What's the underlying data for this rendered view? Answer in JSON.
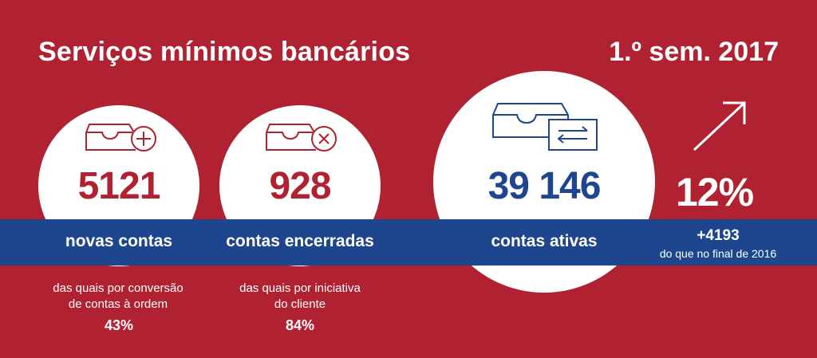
{
  "header": {
    "title": "Serviços mínimos bancários",
    "period": "1.º sem. 2017"
  },
  "stats": {
    "new_accounts": {
      "value": "5121",
      "label": "novas contas",
      "note_line1": "das quais por conversão",
      "note_line2": "de contas à ordem",
      "note_pct": "43%"
    },
    "closed_accounts": {
      "value": "928",
      "label": "contas encerradas",
      "note_line1": "das quais por iniciativa",
      "note_line2": "do cliente",
      "note_pct": "84%"
    },
    "active_accounts": {
      "value": "39 146",
      "label": "contas ativas"
    },
    "growth": {
      "pct": "12%",
      "delta": "+4193",
      "delta_note": "do que no final de 2016"
    }
  },
  "colors": {
    "background": "#b02231",
    "band": "#1e468e",
    "red_text": "#b02231",
    "blue_text": "#1e468e",
    "white": "#ffffff"
  },
  "icons": {
    "new_accounts": "inbox-plus-icon",
    "closed_accounts": "inbox-x-icon",
    "active_accounts": "inbox-transfer-icon",
    "growth": "arrow-up-right-icon"
  }
}
